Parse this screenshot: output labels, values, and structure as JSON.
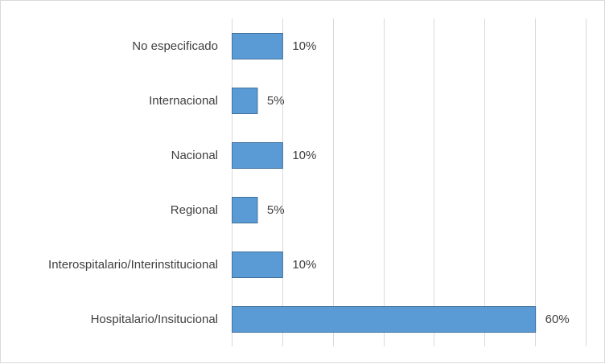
{
  "chart_data": {
    "type": "bar",
    "orientation": "horizontal",
    "categories": [
      "No especificado",
      "Internacional",
      "Nacional",
      "Regional",
      "Interospitalario/Interinstitucional",
      "Hospitalario/Insitucional"
    ],
    "values": [
      10,
      5,
      10,
      5,
      10,
      60
    ],
    "data_labels": [
      "10%",
      "5%",
      "10%",
      "5%",
      "10%",
      "60%"
    ],
    "unit": "%",
    "xlim": [
      0,
      70
    ],
    "x_grid_step": 10,
    "grid": true,
    "x_tick_labels_visible": false,
    "legend": "none",
    "title": "",
    "xlabel": "",
    "ylabel": "",
    "colors": {
      "bar_fill": "#5b9bd5",
      "bar_stroke": "#41719c",
      "gridline": "#d9d9d9",
      "text": "#404040",
      "border": "#d9d9d9"
    }
  }
}
